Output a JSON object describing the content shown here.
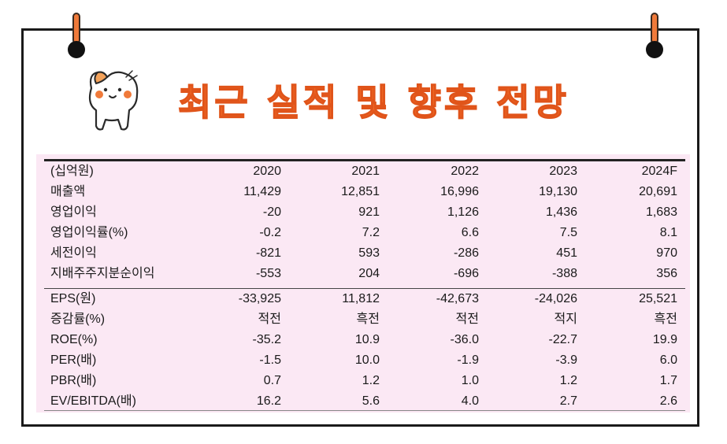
{
  "title": "최근 실적 및 향후 전망",
  "colors": {
    "accent": "#f26a25",
    "table_bg": "#fbe8f4",
    "border": "#1a1a1a"
  },
  "table": {
    "header": [
      "(십억원)",
      "2020",
      "2021",
      "2022",
      "2023",
      "2024F"
    ],
    "rows": [
      [
        "매출액",
        "11,429",
        "12,851",
        "16,996",
        "19,130",
        "20,691"
      ],
      [
        "영업이익",
        "-20",
        "921",
        "1,126",
        "1,436",
        "1,683"
      ],
      [
        "영업이익률(%)",
        "-0.2",
        "7.2",
        "6.6",
        "7.5",
        "8.1"
      ],
      [
        "세전이익",
        "-821",
        "593",
        "-286",
        "451",
        "970"
      ],
      [
        "지배주주지분순이익",
        "-553",
        "204",
        "-696",
        "-388",
        "356"
      ],
      [
        "EPS(원)",
        "-33,925",
        "11,812",
        "-42,673",
        "-24,026",
        "25,521"
      ],
      [
        "증감률(%)",
        "적전",
        "흑전",
        "적전",
        "적지",
        "흑전"
      ],
      [
        "ROE(%)",
        "-35.2",
        "10.9",
        "-36.0",
        "-22.7",
        "19.9"
      ],
      [
        "PER(배)",
        "-1.5",
        "10.0",
        "-1.9",
        "-3.9",
        "6.0"
      ],
      [
        "PBR(배)",
        "0.7",
        "1.2",
        "1.0",
        "1.2",
        "1.7"
      ],
      [
        "EV/EBITDA(배)",
        "16.2",
        "5.6",
        "4.0",
        "2.7",
        "2.6"
      ]
    ]
  }
}
